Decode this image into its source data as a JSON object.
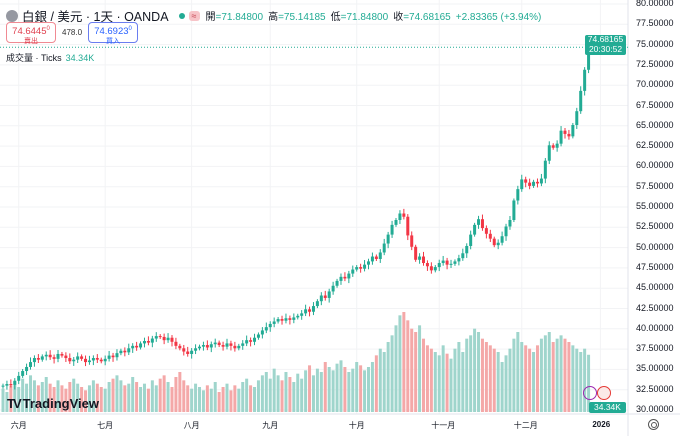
{
  "header": {
    "title": "白銀 / 美元 · 1天 · OANDA",
    "wave_icon": "≈",
    "ohlc": [
      {
        "k": "開",
        "v": "=71.84800"
      },
      {
        "k": "高",
        "v": "=75.14185"
      },
      {
        "k": "低",
        "v": "=71.84800"
      },
      {
        "k": "收",
        "v": "=74.68165"
      }
    ],
    "change": "+2.83365 (+3.94%)"
  },
  "trade": {
    "sell_price": "74.6445",
    "sell_sup": "0",
    "sell_label": "賣出",
    "spread": "478.0",
    "buy_price": "74.6923",
    "buy_sup": "0",
    "buy_label": "買入"
  },
  "volume": {
    "label": "成交量 · Ticks",
    "value": "34.34K"
  },
  "price_label": {
    "price": "74.68165",
    "timer": "20:30:52"
  },
  "brand": "TradingView",
  "colors": {
    "up": "#22ab94",
    "down": "#f23645",
    "vol_up": "#9fd5cc",
    "vol_down": "#f4a8a8"
  },
  "chart_data": {
    "type": "candlestick",
    "ylim": [
      30,
      80
    ],
    "yticks": [
      "80.00000",
      "77.50000",
      "75.00000",
      "72.50000",
      "70.00000",
      "67.50000",
      "65.00000",
      "62.50000",
      "60.00000",
      "57.50000",
      "55.00000",
      "52.50000",
      "50.00000",
      "47.50000",
      "45.00000",
      "42.50000",
      "40.00000",
      "37.50000",
      "35.00000",
      "32.50000",
      "30.00000"
    ],
    "xticks": [
      {
        "label": "六月",
        "i": 4
      },
      {
        "label": "七月",
        "i": 26
      },
      {
        "label": "八月",
        "i": 48
      },
      {
        "label": "九月",
        "i": 68
      },
      {
        "label": "十月",
        "i": 90
      },
      {
        "label": "十一月",
        "i": 111
      },
      {
        "label": "十二月",
        "i": 132
      },
      {
        "label": "2026",
        "i": 152
      }
    ],
    "open_first": 32.9,
    "close": [
      33.0,
      33.2,
      33.1,
      33.6,
      34.2,
      34.8,
      35.3,
      35.9,
      36.4,
      36.2,
      36.6,
      36.8,
      36.5,
      36.3,
      36.9,
      36.7,
      36.4,
      36.0,
      36.2,
      36.6,
      36.3,
      35.9,
      36.1,
      36.4,
      36.2,
      36.0,
      36.3,
      36.7,
      36.5,
      37.0,
      37.3,
      37.1,
      37.6,
      37.9,
      37.7,
      38.2,
      38.5,
      38.3,
      38.8,
      39.1,
      39.0,
      38.6,
      38.9,
      38.4,
      37.9,
      37.6,
      37.2,
      36.9,
      37.3,
      37.6,
      37.8,
      38.0,
      37.7,
      38.1,
      38.3,
      38.0,
      37.8,
      38.2,
      37.9,
      37.6,
      37.9,
      38.2,
      38.6,
      38.4,
      38.9,
      39.3,
      39.8,
      40.2,
      40.6,
      40.9,
      41.2,
      41.0,
      41.3,
      41.1,
      41.4,
      41.6,
      41.9,
      42.4,
      42.1,
      42.8,
      43.4,
      44.1,
      43.8,
      44.6,
      45.3,
      45.9,
      46.4,
      46.2,
      46.8,
      47.3,
      47.6,
      47.4,
      47.9,
      48.3,
      48.9,
      48.6,
      49.4,
      50.5,
      51.6,
      52.8,
      53.4,
      54.2,
      53.8,
      51.5,
      50.1,
      48.5,
      48.9,
      48.1,
      47.7,
      47.2,
      47.6,
      48.1,
      48.4,
      47.9,
      48.0,
      48.3,
      48.7,
      49.3,
      50.2,
      51.6,
      52.8,
      53.5,
      52.4,
      51.7,
      51.1,
      50.3,
      50.6,
      51.4,
      52.6,
      53.4,
      55.8,
      57.2,
      58.4,
      58.0,
      57.6,
      58.1,
      57.9,
      58.5,
      60.7,
      62.6,
      62.3,
      62.8,
      64.4,
      64.0,
      63.7,
      65.1,
      66.8,
      69.3,
      71.9,
      74.68
    ],
    "volume_k": [
      14,
      12,
      16,
      18,
      15,
      20,
      17,
      22,
      19,
      16,
      18,
      21,
      17,
      15,
      19,
      16,
      14,
      18,
      20,
      17,
      15,
      13,
      16,
      19,
      17,
      15,
      14,
      18,
      20,
      22,
      19,
      16,
      17,
      21,
      18,
      15,
      17,
      14,
      19,
      16,
      20,
      22,
      18,
      15,
      21,
      24,
      19,
      16,
      14,
      17,
      15,
      13,
      16,
      14,
      18,
      12,
      15,
      17,
      13,
      16,
      14,
      18,
      20,
      16,
      15,
      19,
      22,
      24,
      20,
      26,
      22,
      19,
      24,
      21,
      18,
      23,
      20,
      25,
      28,
      22,
      26,
      24,
      30,
      27,
      25,
      29,
      31,
      27,
      24,
      26,
      30,
      28,
      25,
      27,
      30,
      34,
      38,
      36,
      42,
      46,
      52,
      58,
      60,
      55,
      50,
      48,
      52,
      44,
      40,
      38,
      36,
      34,
      40,
      35,
      32,
      38,
      42,
      36,
      44,
      46,
      50,
      48,
      44,
      42,
      40,
      38,
      36,
      30,
      34,
      38,
      44,
      48,
      42,
      40,
      38,
      36,
      40,
      44,
      46,
      48,
      42,
      44,
      46,
      44,
      42,
      40,
      38,
      36,
      38,
      34.34
    ]
  }
}
